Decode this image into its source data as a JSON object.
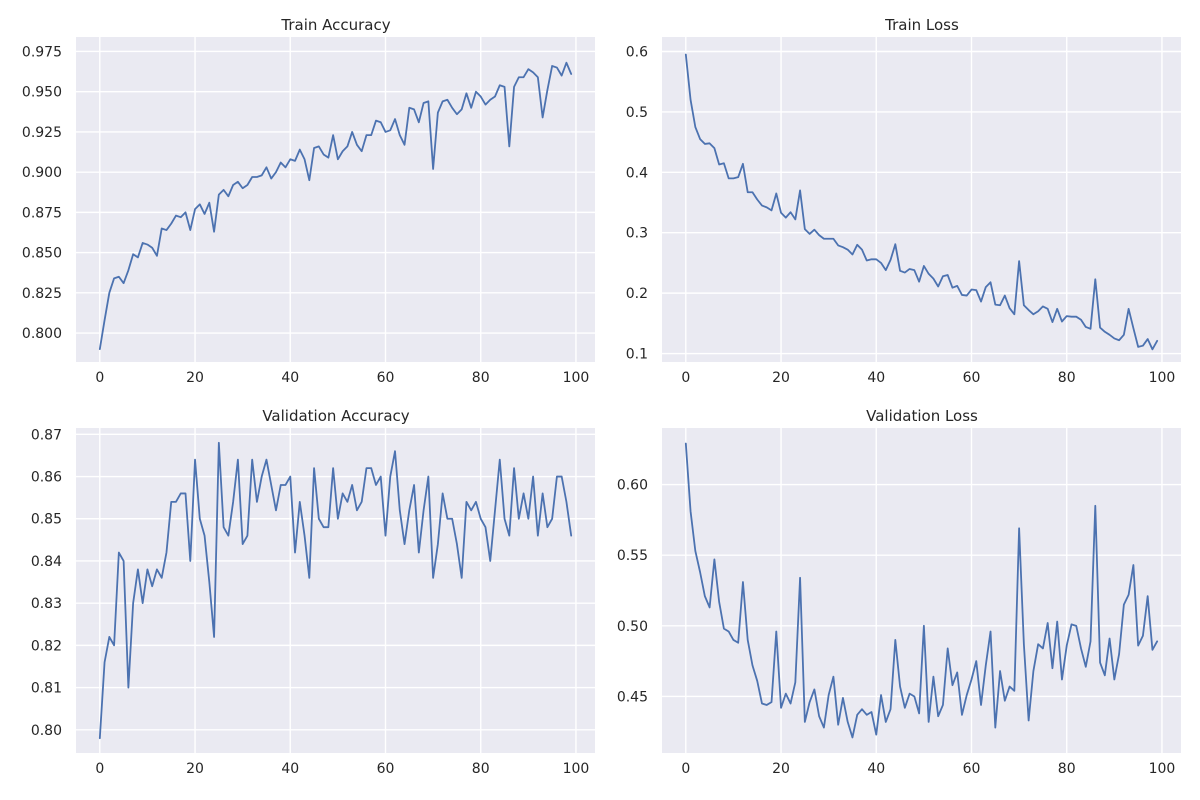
{
  "colors": {
    "background": "#eaeaf2",
    "grid": "#ffffff",
    "line": "#4c72b0",
    "text": "#262626"
  },
  "chart_data": [
    {
      "type": "line",
      "title": "Train Accuracy",
      "xlabel": "",
      "ylabel": "",
      "xlim": [
        -5,
        104
      ],
      "ylim": [
        0.782,
        0.984
      ],
      "x_ticks": [
        0,
        20,
        40,
        60,
        80,
        100
      ],
      "y_ticks": [
        0.8,
        0.825,
        0.85,
        0.875,
        0.9,
        0.925,
        0.95,
        0.975
      ],
      "y_tick_labels": [
        "0.800",
        "0.825",
        "0.850",
        "0.875",
        "0.900",
        "0.925",
        "0.950",
        "0.975"
      ],
      "grid": true,
      "series": [
        {
          "values": [
            0.79,
            0.808,
            0.825,
            0.834,
            0.835,
            0.831,
            0.839,
            0.849,
            0.847,
            0.856,
            0.855,
            0.853,
            0.848,
            0.865,
            0.864,
            0.868,
            0.873,
            0.872,
            0.875,
            0.864,
            0.877,
            0.88,
            0.874,
            0.881,
            0.863,
            0.886,
            0.889,
            0.885,
            0.892,
            0.894,
            0.89,
            0.892,
            0.897,
            0.897,
            0.898,
            0.903,
            0.896,
            0.9,
            0.906,
            0.903,
            0.908,
            0.907,
            0.914,
            0.908,
            0.895,
            0.915,
            0.916,
            0.911,
            0.909,
            0.923,
            0.908,
            0.913,
            0.916,
            0.925,
            0.917,
            0.913,
            0.923,
            0.923,
            0.932,
            0.931,
            0.925,
            0.926,
            0.933,
            0.923,
            0.917,
            0.94,
            0.939,
            0.931,
            0.943,
            0.944,
            0.902,
            0.937,
            0.944,
            0.945,
            0.94,
            0.936,
            0.939,
            0.949,
            0.94,
            0.95,
            0.947,
            0.942,
            0.945,
            0.947,
            0.954,
            0.953,
            0.916,
            0.953,
            0.959,
            0.959,
            0.964,
            0.962,
            0.959,
            0.934,
            0.951,
            0.966,
            0.965,
            0.96,
            0.968,
            0.961
          ]
        }
      ]
    },
    {
      "type": "line",
      "title": "Train Loss",
      "xlabel": "",
      "ylabel": "",
      "xlim": [
        -5,
        104
      ],
      "ylim": [
        0.086,
        0.624
      ],
      "x_ticks": [
        0,
        20,
        40,
        60,
        80,
        100
      ],
      "y_ticks": [
        0.1,
        0.2,
        0.3,
        0.4,
        0.5,
        0.6
      ],
      "y_tick_labels": [
        "0.1",
        "0.2",
        "0.3",
        "0.4",
        "0.5",
        "0.6"
      ],
      "grid": true,
      "series": [
        {
          "values": [
            0.595,
            0.52,
            0.475,
            0.455,
            0.447,
            0.448,
            0.44,
            0.413,
            0.415,
            0.39,
            0.39,
            0.392,
            0.414,
            0.367,
            0.367,
            0.355,
            0.345,
            0.342,
            0.337,
            0.365,
            0.333,
            0.325,
            0.334,
            0.322,
            0.37,
            0.306,
            0.298,
            0.305,
            0.296,
            0.29,
            0.29,
            0.29,
            0.279,
            0.276,
            0.272,
            0.264,
            0.28,
            0.272,
            0.254,
            0.256,
            0.256,
            0.25,
            0.238,
            0.255,
            0.281,
            0.237,
            0.234,
            0.24,
            0.238,
            0.219,
            0.245,
            0.232,
            0.224,
            0.211,
            0.228,
            0.23,
            0.209,
            0.212,
            0.197,
            0.196,
            0.206,
            0.205,
            0.186,
            0.21,
            0.218,
            0.181,
            0.18,
            0.196,
            0.175,
            0.165,
            0.253,
            0.18,
            0.172,
            0.165,
            0.17,
            0.178,
            0.174,
            0.152,
            0.174,
            0.153,
            0.162,
            0.161,
            0.161,
            0.156,
            0.144,
            0.141,
            0.223,
            0.143,
            0.136,
            0.131,
            0.125,
            0.122,
            0.131,
            0.174,
            0.142,
            0.111,
            0.113,
            0.124,
            0.107,
            0.121
          ]
        }
      ]
    },
    {
      "type": "line",
      "title": "Validation Accuracy",
      "xlabel": "",
      "ylabel": "",
      "xlim": [
        -5,
        104
      ],
      "ylim": [
        0.7945,
        0.8715
      ],
      "x_ticks": [
        0,
        20,
        40,
        60,
        80,
        100
      ],
      "y_ticks": [
        0.8,
        0.81,
        0.82,
        0.83,
        0.84,
        0.85,
        0.86,
        0.87
      ],
      "y_tick_labels": [
        "0.80",
        "0.81",
        "0.82",
        "0.83",
        "0.84",
        "0.85",
        "0.86",
        "0.87"
      ],
      "grid": true,
      "series": [
        {
          "values": [
            0.798,
            0.816,
            0.822,
            0.82,
            0.842,
            0.84,
            0.81,
            0.83,
            0.838,
            0.83,
            0.838,
            0.834,
            0.838,
            0.836,
            0.842,
            0.854,
            0.854,
            0.856,
            0.856,
            0.84,
            0.864,
            0.85,
            0.846,
            0.835,
            0.822,
            0.868,
            0.848,
            0.846,
            0.854,
            0.864,
            0.844,
            0.846,
            0.864,
            0.854,
            0.86,
            0.864,
            0.858,
            0.852,
            0.858,
            0.858,
            0.86,
            0.842,
            0.854,
            0.846,
            0.836,
            0.862,
            0.85,
            0.848,
            0.848,
            0.862,
            0.85,
            0.856,
            0.854,
            0.858,
            0.852,
            0.854,
            0.862,
            0.862,
            0.858,
            0.86,
            0.846,
            0.86,
            0.866,
            0.852,
            0.844,
            0.852,
            0.858,
            0.842,
            0.852,
            0.86,
            0.836,
            0.844,
            0.856,
            0.85,
            0.85,
            0.844,
            0.836,
            0.854,
            0.852,
            0.854,
            0.85,
            0.848,
            0.84,
            0.852,
            0.864,
            0.85,
            0.846,
            0.862,
            0.85,
            0.856,
            0.85,
            0.86,
            0.846,
            0.856,
            0.848,
            0.85,
            0.86,
            0.86,
            0.854,
            0.846
          ]
        }
      ]
    },
    {
      "type": "line",
      "title": "Validation Loss",
      "xlabel": "",
      "ylabel": "",
      "xlim": [
        -5,
        104
      ],
      "ylim": [
        0.41,
        0.64
      ],
      "x_ticks": [
        0,
        20,
        40,
        60,
        80,
        100
      ],
      "y_ticks": [
        0.45,
        0.5,
        0.55,
        0.6
      ],
      "y_tick_labels": [
        "0.45",
        "0.50",
        "0.55",
        "0.60"
      ],
      "grid": true,
      "series": [
        {
          "values": [
            0.629,
            0.581,
            0.553,
            0.538,
            0.521,
            0.513,
            0.547,
            0.517,
            0.498,
            0.496,
            0.49,
            0.488,
            0.531,
            0.49,
            0.472,
            0.461,
            0.445,
            0.444,
            0.446,
            0.496,
            0.442,
            0.452,
            0.445,
            0.46,
            0.534,
            0.432,
            0.446,
            0.455,
            0.436,
            0.428,
            0.451,
            0.464,
            0.43,
            0.449,
            0.432,
            0.421,
            0.437,
            0.441,
            0.437,
            0.439,
            0.423,
            0.451,
            0.432,
            0.441,
            0.49,
            0.457,
            0.442,
            0.452,
            0.45,
            0.438,
            0.5,
            0.432,
            0.464,
            0.436,
            0.444,
            0.484,
            0.458,
            0.467,
            0.437,
            0.451,
            0.462,
            0.475,
            0.444,
            0.472,
            0.496,
            0.428,
            0.468,
            0.447,
            0.457,
            0.454,
            0.569,
            0.487,
            0.433,
            0.468,
            0.487,
            0.484,
            0.502,
            0.47,
            0.503,
            0.462,
            0.486,
            0.501,
            0.5,
            0.484,
            0.471,
            0.489,
            0.585,
            0.474,
            0.465,
            0.491,
            0.462,
            0.48,
            0.515,
            0.522,
            0.543,
            0.486,
            0.493,
            0.521,
            0.483,
            0.489
          ]
        }
      ]
    }
  ]
}
